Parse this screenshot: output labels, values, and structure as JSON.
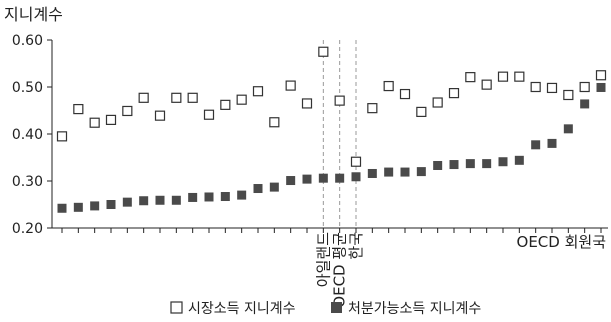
{
  "chart_data": {
    "type": "scatter",
    "ylabel": "지니계수",
    "ylim": [
      0.2,
      0.6
    ],
    "yticks": [
      "0.20",
      "0.30",
      "0.40",
      "0.50",
      "0.60"
    ],
    "grid": false,
    "legend_position": "bottom",
    "series": [
      {
        "name": "시장소득 지니계수",
        "marker": "hollow-square",
        "color": "#333333",
        "values": [
          0.395,
          0.453,
          0.424,
          0.43,
          0.449,
          0.477,
          0.439,
          0.477,
          0.477,
          0.441,
          0.462,
          0.473,
          0.491,
          0.425,
          0.503,
          0.465,
          0.575,
          0.471,
          0.341,
          0.455,
          0.502,
          0.485,
          0.447,
          0.467,
          0.487,
          0.521,
          0.505,
          0.522,
          0.522,
          0.5,
          0.498,
          0.483,
          0.5,
          0.525
        ]
      },
      {
        "name": "처분가능소득 지니계수",
        "marker": "filled-square",
        "color": "#4a4a4a",
        "values": [
          0.242,
          0.244,
          0.247,
          0.25,
          0.255,
          0.258,
          0.259,
          0.259,
          0.265,
          0.266,
          0.267,
          0.27,
          0.284,
          0.287,
          0.301,
          0.304,
          0.306,
          0.306,
          0.309,
          0.316,
          0.319,
          0.319,
          0.32,
          0.333,
          0.335,
          0.337,
          0.337,
          0.341,
          0.344,
          0.377,
          0.38,
          0.411,
          0.464,
          0.499
        ]
      }
    ],
    "annotations": [
      {
        "label": "아일랜드",
        "index": 16
      },
      {
        "label": "OECD 평균",
        "index": 17
      },
      {
        "label": "한국",
        "index": 18
      }
    ],
    "xlabel": "OECD 회원국"
  }
}
